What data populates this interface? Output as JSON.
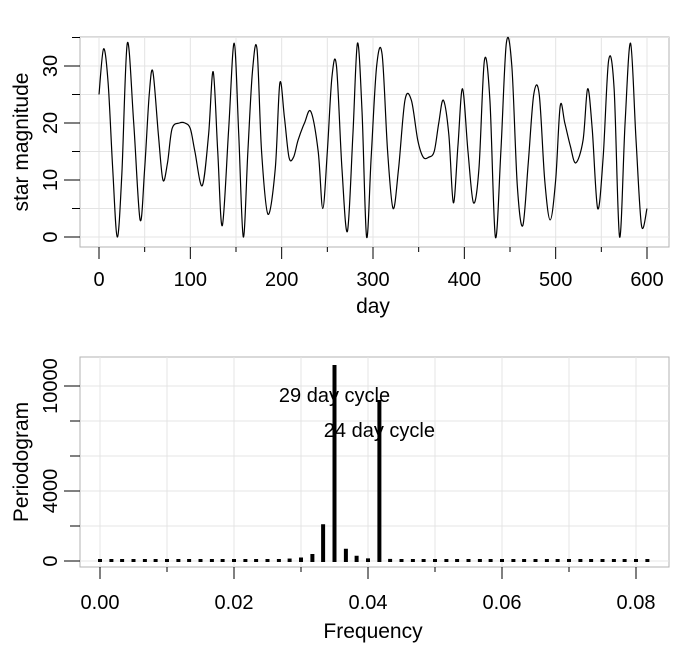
{
  "chart_data": [
    {
      "type": "line",
      "xlabel": "day",
      "ylabel": "star magnitude",
      "xlim": [
        0,
        600
      ],
      "ylim": [
        0,
        35
      ],
      "xticks": [
        0,
        100,
        200,
        300,
        400,
        500,
        600
      ],
      "yticks": [
        0,
        10,
        20,
        30
      ],
      "grid": true,
      "series": [
        {
          "x": [
            0,
            5,
            10,
            15,
            20,
            25,
            31,
            38,
            45,
            50,
            55,
            59,
            65,
            70,
            75,
            80,
            88,
            94,
            100,
            105,
            113,
            120,
            125,
            130,
            135,
            142,
            148,
            153,
            158,
            163,
            168,
            173,
            178,
            185,
            193,
            198,
            203,
            208,
            213,
            218,
            225,
            232,
            240,
            245,
            250,
            255,
            260,
            266,
            272,
            278,
            283,
            288,
            293,
            298,
            304,
            310,
            316,
            322,
            328,
            335,
            342,
            349,
            355,
            361,
            367,
            372,
            377,
            383,
            388,
            393,
            398,
            404,
            410,
            416,
            422,
            428,
            434,
            440,
            446,
            452,
            458,
            464,
            470,
            476,
            482,
            488,
            494,
            500,
            505,
            510,
            516,
            522,
            530,
            535,
            540,
            546,
            552,
            558,
            564,
            570,
            576,
            582,
            588,
            594,
            600
          ],
          "values": [
            25,
            33,
            27,
            12,
            0,
            11,
            34,
            20,
            3,
            12,
            25,
            29,
            18,
            10,
            13,
            19,
            20,
            20,
            19,
            15,
            9,
            18,
            29,
            15,
            2,
            19,
            34,
            18,
            0,
            15,
            29,
            33,
            15,
            4,
            12,
            27,
            21,
            14,
            14,
            17,
            20,
            22,
            15,
            5,
            15,
            28,
            30,
            12,
            1,
            18,
            34,
            22,
            0,
            14,
            30,
            32,
            15,
            5,
            12,
            24,
            24,
            17,
            14,
            14,
            15,
            20,
            24,
            18,
            6,
            16,
            26,
            15,
            6,
            12,
            31,
            24,
            0,
            15,
            34,
            30,
            9,
            2,
            13,
            25,
            25,
            10,
            3,
            10,
            23,
            20,
            16,
            13,
            17,
            26,
            19,
            5,
            14,
            31,
            26,
            0,
            20,
            34,
            17,
            2,
            5
          ]
        }
      ]
    },
    {
      "type": "bar",
      "xlabel": "Frequency",
      "ylabel": "Periodogram",
      "xlim": [
        0,
        0.082
      ],
      "ylim": [
        0,
        11000
      ],
      "xticks": [
        0.0,
        0.02,
        0.04,
        0.06,
        0.08
      ],
      "xtick_labels": [
        "0.00",
        "0.02",
        "0.04",
        "0.06",
        "0.08"
      ],
      "yticks": [
        0,
        4000,
        10000
      ],
      "ytick_labels": [
        "0",
        "4000",
        "10000"
      ],
      "grid": true,
      "x": [
        0.0,
        0.0017,
        0.0033,
        0.005,
        0.0067,
        0.0083,
        0.01,
        0.0117,
        0.0133,
        0.015,
        0.0167,
        0.0183,
        0.02,
        0.0217,
        0.0233,
        0.025,
        0.0267,
        0.0283,
        0.03,
        0.0317,
        0.0333,
        0.035,
        0.0367,
        0.0383,
        0.04,
        0.0417,
        0.0433,
        0.045,
        0.0467,
        0.0483,
        0.05,
        0.0517,
        0.0533,
        0.055,
        0.0567,
        0.0583,
        0.06,
        0.0617,
        0.0633,
        0.065,
        0.0667,
        0.0683,
        0.07,
        0.0717,
        0.0733,
        0.075,
        0.0767,
        0.0783,
        0.08,
        0.0817
      ],
      "values": [
        40,
        40,
        40,
        40,
        40,
        40,
        40,
        40,
        40,
        40,
        40,
        40,
        60,
        70,
        80,
        90,
        110,
        140,
        200,
        400,
        2100,
        11200,
        700,
        300,
        150,
        9200,
        120,
        90,
        70,
        60,
        50,
        50,
        40,
        40,
        40,
        40,
        40,
        40,
        40,
        40,
        40,
        40,
        40,
        40,
        40,
        40,
        40,
        40,
        40,
        40
      ],
      "annotations": [
        {
          "text": "29 day cycle",
          "x": 0.035,
          "y": 9100
        },
        {
          "text": "24 day cycle",
          "x": 0.0417,
          "y": 7100
        }
      ]
    }
  ]
}
